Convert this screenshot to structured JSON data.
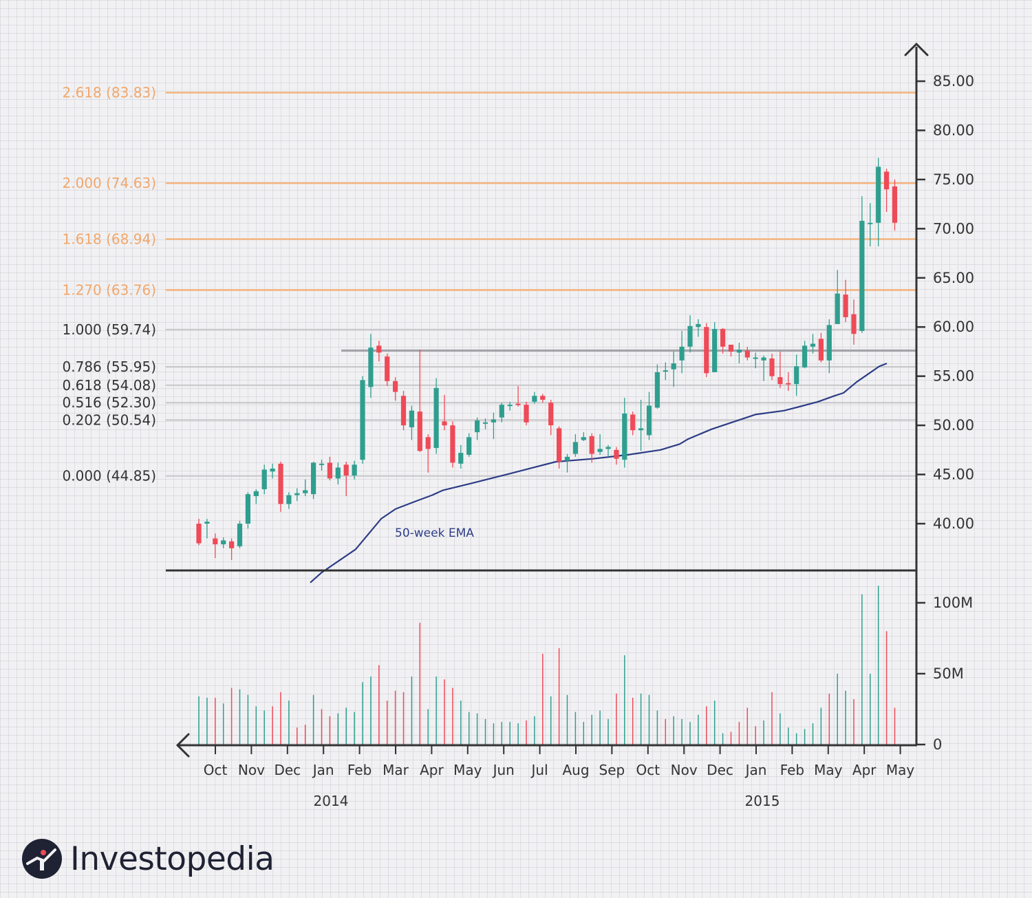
{
  "colors": {
    "up": "#2f9e8f",
    "down": "#ef4a57",
    "ema": "#2d3c86",
    "fib_orange": "#f6b27a",
    "fib_orange_text": "#f2a76a",
    "fib_gray": "#c9c9cc",
    "resistance": "#a3a3a8",
    "axis": "#333333",
    "text": "#333333"
  },
  "brand": {
    "name": "Investopedia"
  },
  "chart_data": {
    "type": "candlestick",
    "price_axis": {
      "ticks": [
        "85.00",
        "80.00",
        "75.00",
        "70.00",
        "65.00",
        "60.00",
        "55.00",
        "50.00",
        "45.00",
        "40.00"
      ],
      "ylim": [
        33.5,
        90.4
      ]
    },
    "volume_axis": {
      "ticks": [
        "100M",
        "50M",
        "0"
      ],
      "ylim": [
        0,
        118
      ]
    },
    "x_month_labels": [
      "Oct",
      "Nov",
      "Dec",
      "Jan",
      "Feb",
      "Mar",
      "Apr",
      "May",
      "Jun",
      "Jul",
      "Aug",
      "Sep",
      "Oct",
      "Nov",
      "Dec",
      "Jan",
      "Feb",
      "May",
      "Apr",
      "May"
    ],
    "year_labels": [
      "2014",
      "2015"
    ],
    "fib_levels": [
      {
        "label": "2.618 (83.83)",
        "value": 83.83,
        "style": "orange"
      },
      {
        "label": "2.000 (74.63)",
        "value": 74.63,
        "style": "orange"
      },
      {
        "label": "1.618 (68.94)",
        "value": 68.94,
        "style": "orange"
      },
      {
        "label": "1.270 (63.76)",
        "value": 63.76,
        "style": "orange"
      },
      {
        "label": "1.000 (59.74)",
        "value": 59.74,
        "style": "gray"
      },
      {
        "label": "0.786 (55.95)",
        "value": 55.95,
        "style": "gray"
      },
      {
        "label": "0.618 (54.08)",
        "value": 54.08,
        "style": "gray"
      },
      {
        "label": "0.516 (52.30)",
        "value": 52.3,
        "style": "gray"
      },
      {
        "label": "0.202 (50.54)",
        "value": 50.54,
        "style": "gray"
      },
      {
        "label": "0.000 (44.85)",
        "value": 44.85,
        "style": "gray"
      }
    ],
    "resistance_level": 57.6,
    "ema_label": "50-week EMA",
    "candles": [
      [
        40.0,
        38.0,
        40.5,
        37.8
      ],
      [
        40.0,
        40.2,
        40.5,
        38.5
      ],
      [
        38.5,
        37.9,
        39.0,
        36.5
      ],
      [
        37.9,
        38.3,
        38.6,
        37.5
      ],
      [
        38.2,
        37.5,
        38.5,
        36.3
      ],
      [
        37.7,
        40.0,
        40.3,
        37.5
      ],
      [
        40.0,
        43.0,
        43.2,
        39.5
      ],
      [
        42.8,
        43.3,
        43.5,
        42.0
      ],
      [
        43.5,
        45.5,
        46.0,
        43.0
      ],
      [
        45.3,
        45.6,
        46.1,
        44.6
      ],
      [
        46.1,
        42.0,
        46.3,
        41.2
      ],
      [
        42.0,
        42.9,
        43.2,
        41.5
      ],
      [
        42.9,
        43.1,
        43.6,
        42.3
      ],
      [
        43.1,
        43.4,
        44.5,
        42.8
      ],
      [
        43.0,
        46.2,
        46.3,
        42.5
      ],
      [
        46.0,
        46.1,
        46.5,
        45.4
      ],
      [
        46.2,
        44.6,
        46.8,
        44.4
      ],
      [
        44.6,
        45.7,
        46.2,
        44.0
      ],
      [
        46.0,
        44.9,
        46.3,
        42.8
      ],
      [
        44.9,
        46.0,
        46.4,
        44.5
      ],
      [
        46.5,
        54.6,
        55.0,
        46.1
      ],
      [
        53.9,
        57.9,
        59.3,
        52.8
      ],
      [
        58.1,
        57.4,
        58.6,
        56.5
      ],
      [
        57.0,
        54.5,
        57.3,
        54.0
      ],
      [
        54.5,
        53.4,
        54.9,
        52.5
      ],
      [
        53.0,
        50.0,
        53.5,
        49.5
      ],
      [
        49.8,
        51.5,
        52.0,
        48.5
      ],
      [
        51.4,
        47.4,
        57.7,
        47.3
      ],
      [
        48.8,
        47.6,
        49.1,
        45.2
      ],
      [
        47.7,
        53.8,
        54.8,
        47.1
      ],
      [
        50.4,
        50.0,
        53.1,
        49.5
      ],
      [
        50.0,
        46.2,
        50.4,
        45.7
      ],
      [
        46.1,
        47.2,
        48.0,
        45.6
      ],
      [
        47.0,
        48.8,
        49.2,
        46.8
      ],
      [
        49.3,
        50.5,
        50.8,
        48.5
      ],
      [
        50.2,
        50.3,
        50.7,
        49.6
      ],
      [
        50.3,
        50.6,
        51.3,
        48.6
      ],
      [
        50.8,
        52.1,
        52.3,
        50.3
      ],
      [
        52.0,
        52.1,
        52.4,
        51.5
      ],
      [
        52.2,
        52.1,
        54.0,
        51.9
      ],
      [
        52.1,
        50.3,
        52.4,
        50.0
      ],
      [
        52.4,
        53.0,
        53.4,
        52.2
      ],
      [
        53.0,
        52.6,
        53.2,
        52.3
      ],
      [
        52.3,
        50.0,
        52.6,
        49.0
      ],
      [
        49.7,
        46.3,
        49.9,
        45.6
      ],
      [
        46.4,
        46.8,
        47.1,
        45.2
      ],
      [
        47.1,
        48.3,
        49.1,
        46.8
      ],
      [
        48.5,
        48.8,
        49.3,
        48.4
      ],
      [
        48.9,
        47.1,
        49.2,
        46.2
      ],
      [
        47.3,
        47.6,
        49.1,
        47.0
      ],
      [
        47.6,
        47.8,
        48.0,
        46.8
      ],
      [
        47.5,
        46.6,
        47.8,
        46.0
      ],
      [
        46.5,
        51.2,
        52.8,
        45.7
      ],
      [
        51.1,
        49.5,
        51.4,
        49.0
      ],
      [
        49.5,
        49.7,
        52.6,
        47.4
      ],
      [
        49.0,
        52.0,
        53.4,
        48.5
      ],
      [
        51.8,
        55.4,
        56.2,
        51.7
      ],
      [
        55.5,
        55.6,
        56.4,
        54.6
      ],
      [
        55.7,
        56.3,
        57.5,
        53.9
      ],
      [
        56.6,
        58.0,
        59.6,
        55.3
      ],
      [
        58.0,
        60.1,
        61.2,
        57.4
      ],
      [
        60.0,
        60.3,
        60.8,
        59.0
      ],
      [
        60.0,
        55.3,
        60.4,
        54.9
      ],
      [
        55.4,
        59.8,
        60.5,
        55.5
      ],
      [
        59.8,
        58.0,
        59.9,
        57.3
      ],
      [
        58.2,
        57.5,
        58.2,
        57.0
      ],
      [
        57.4,
        57.7,
        58.4,
        56.3
      ],
      [
        57.6,
        56.9,
        58.0,
        56.6
      ],
      [
        56.8,
        56.9,
        57.4,
        55.8
      ],
      [
        56.6,
        56.9,
        57.1,
        54.5
      ],
      [
        56.8,
        55.0,
        57.3,
        54.6
      ],
      [
        54.9,
        54.2,
        57.5,
        53.8
      ],
      [
        54.3,
        54.2,
        55.4,
        53.5
      ],
      [
        54.2,
        56.0,
        57.2,
        53.0
      ],
      [
        55.9,
        58.1,
        58.6,
        55.8
      ],
      [
        58.0,
        58.3,
        59.3,
        57.3
      ],
      [
        58.8,
        56.6,
        59.4,
        56.4
      ],
      [
        56.6,
        60.2,
        60.8,
        55.3
      ],
      [
        60.3,
        63.4,
        65.8,
        60.4
      ],
      [
        63.3,
        61.0,
        64.8,
        60.5
      ],
      [
        61.3,
        59.3,
        62.8,
        58.2
      ],
      [
        59.6,
        70.8,
        73.3,
        59.4
      ],
      [
        70.6,
        70.6,
        72.6,
        68.2
      ],
      [
        70.6,
        76.3,
        77.2,
        68.2
      ],
      [
        75.8,
        74.0,
        76.1,
        71.7
      ],
      [
        74.3,
        70.6,
        75.0,
        69.8
      ]
    ],
    "volume": [
      [
        1,
        34
      ],
      [
        1,
        33
      ],
      [
        0,
        33
      ],
      [
        1,
        29
      ],
      [
        0,
        40
      ],
      [
        1,
        39
      ],
      [
        1,
        35
      ],
      [
        1,
        27
      ],
      [
        1,
        24
      ],
      [
        0,
        27
      ],
      [
        0,
        37
      ],
      [
        1,
        31
      ],
      [
        0,
        12
      ],
      [
        0,
        14
      ],
      [
        1,
        35
      ],
      [
        0,
        25
      ],
      [
        0,
        20
      ],
      [
        1,
        22
      ],
      [
        1,
        26
      ],
      [
        1,
        23
      ],
      [
        1,
        44
      ],
      [
        1,
        48
      ],
      [
        0,
        56
      ],
      [
        0,
        31
      ],
      [
        0,
        38
      ],
      [
        0,
        37
      ],
      [
        1,
        48
      ],
      [
        0,
        86
      ],
      [
        1,
        25
      ],
      [
        1,
        48
      ],
      [
        0,
        46
      ],
      [
        0,
        40
      ],
      [
        1,
        31
      ],
      [
        1,
        23
      ],
      [
        1,
        22
      ],
      [
        1,
        18
      ],
      [
        1,
        15
      ],
      [
        1,
        16
      ],
      [
        1,
        16
      ],
      [
        1,
        15
      ],
      [
        0,
        17
      ],
      [
        1,
        20
      ],
      [
        0,
        64
      ],
      [
        1,
        34
      ],
      [
        0,
        68
      ],
      [
        1,
        35
      ],
      [
        1,
        23
      ],
      [
        1,
        16
      ],
      [
        1,
        21
      ],
      [
        1,
        24
      ],
      [
        1,
        18
      ],
      [
        0,
        36
      ],
      [
        1,
        63
      ],
      [
        0,
        33
      ],
      [
        1,
        36
      ],
      [
        1,
        35
      ],
      [
        1,
        24
      ],
      [
        0,
        18
      ],
      [
        1,
        20
      ],
      [
        1,
        18
      ],
      [
        1,
        16
      ],
      [
        1,
        21
      ],
      [
        0,
        27
      ],
      [
        1,
        31
      ],
      [
        1,
        8
      ],
      [
        0,
        9
      ],
      [
        0,
        16
      ],
      [
        0,
        26
      ],
      [
        0,
        13
      ],
      [
        1,
        17
      ],
      [
        0,
        37
      ],
      [
        1,
        22
      ],
      [
        1,
        12
      ],
      [
        1,
        8
      ],
      [
        1,
        11
      ],
      [
        1,
        15
      ],
      [
        1,
        26
      ],
      [
        0,
        36
      ],
      [
        1,
        50
      ],
      [
        1,
        38
      ],
      [
        0,
        32
      ],
      [
        1,
        106
      ],
      [
        1,
        50
      ],
      [
        1,
        112
      ],
      [
        0,
        80
      ],
      [
        0,
        26
      ]
    ],
    "ema": [
      [
        451,
        34.0
      ],
      [
        467,
        35.0
      ],
      [
        492,
        36.2
      ],
      [
        517,
        37.4
      ],
      [
        535,
        38.9
      ],
      [
        554,
        40.5
      ],
      [
        575,
        41.5
      ],
      [
        605,
        42.3
      ],
      [
        628,
        42.9
      ],
      [
        644,
        43.4
      ],
      [
        685,
        44.1
      ],
      [
        742,
        45.1
      ],
      [
        808,
        46.3
      ],
      [
        862,
        46.6
      ],
      [
        912,
        47.0
      ],
      [
        960,
        47.5
      ],
      [
        988,
        48.1
      ],
      [
        1000,
        48.6
      ],
      [
        1034,
        49.6
      ],
      [
        1068,
        50.4
      ],
      [
        1098,
        51.1
      ],
      [
        1140,
        51.5
      ],
      [
        1162,
        51.9
      ],
      [
        1189,
        52.4
      ],
      [
        1213,
        53.0
      ],
      [
        1226,
        53.3
      ],
      [
        1245,
        54.4
      ],
      [
        1278,
        56.0
      ],
      [
        1289,
        56.3
      ]
    ]
  }
}
